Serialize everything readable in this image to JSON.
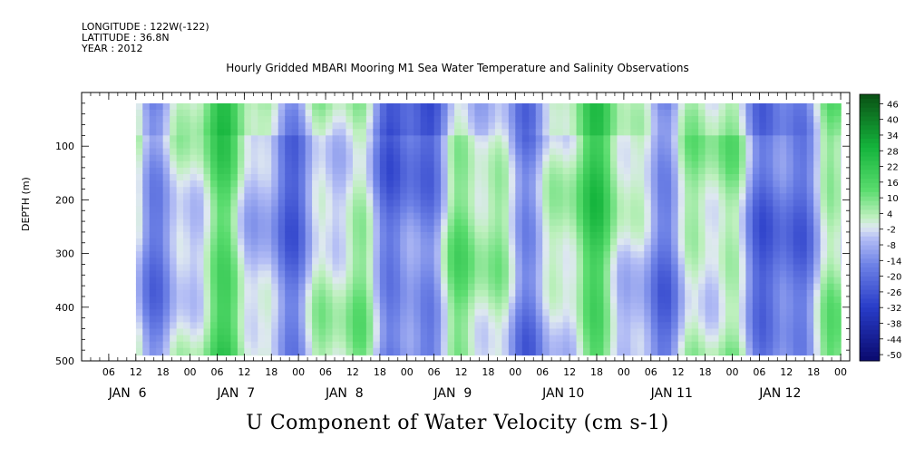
{
  "header": {
    "longitude": "LONGITUDE : 122W(-122)",
    "latitude": "LATITUDE : 36.8N",
    "year": "YEAR : 2012",
    "title": "Hourly Gridded MBARI Mooring M1 Sea Water Temperature and Salinity Observations"
  },
  "chart_data": {
    "type": "heatmap",
    "title": "Hourly Gridded MBARI Mooring M1 Sea Water Temperature and Salinity Observations",
    "variable_label": "U Component of Water Velocity (cm s-1)",
    "ylabel": "DEPTH (m)",
    "xlabel": "",
    "y_axis": {
      "range": [
        0,
        500
      ],
      "reversed": true,
      "ticks": [
        100,
        200,
        300,
        400,
        500
      ]
    },
    "x_axis": {
      "range_hours": "JAN 6 00 to JAN 13 02",
      "hour_tick_labels": [
        "06",
        "12",
        "18",
        "00",
        "06",
        "12",
        "18",
        "00",
        "06",
        "12",
        "18",
        "00",
        "06",
        "12",
        "18",
        "00",
        "06",
        "12",
        "18",
        "00",
        "06",
        "12",
        "18",
        "00",
        "06",
        "12",
        "18",
        "00"
      ],
      "day_labels": [
        "JAN  6",
        "JAN  7",
        "JAN  8",
        "JAN  9",
        "JAN 10",
        "JAN 11",
        "JAN 12"
      ]
    },
    "colorbar": {
      "range": [
        -50,
        50
      ],
      "tick_labels": [
        "46",
        "40",
        "34",
        "28",
        "22",
        "16",
        "10",
        "4",
        "-2",
        "-8",
        "-14",
        "-20",
        "-26",
        "-32",
        "-38",
        "-44",
        "-50"
      ],
      "negative_color": "#1e3cc8",
      "positive_color": "#14b43c",
      "near_zero_color": "#d8f0d8"
    },
    "grid": false,
    "data_extent": {
      "depth_m": [
        20,
        490
      ],
      "start": "JAN 6 12"
    },
    "description_of_field": "Vertical banded structure alternating positive (green, eastward) and negative (blue, westward) velocity, magnitudes mostly between -20 and 20 cm s-1"
  },
  "colors": {
    "strong_negative": "#0a0a6e",
    "negative": "#5a6ee6",
    "weak_negative": "#aab4f0",
    "weak_positive": "#b4f0b4",
    "positive": "#3cdc50",
    "strong_positive": "#0a5014"
  }
}
